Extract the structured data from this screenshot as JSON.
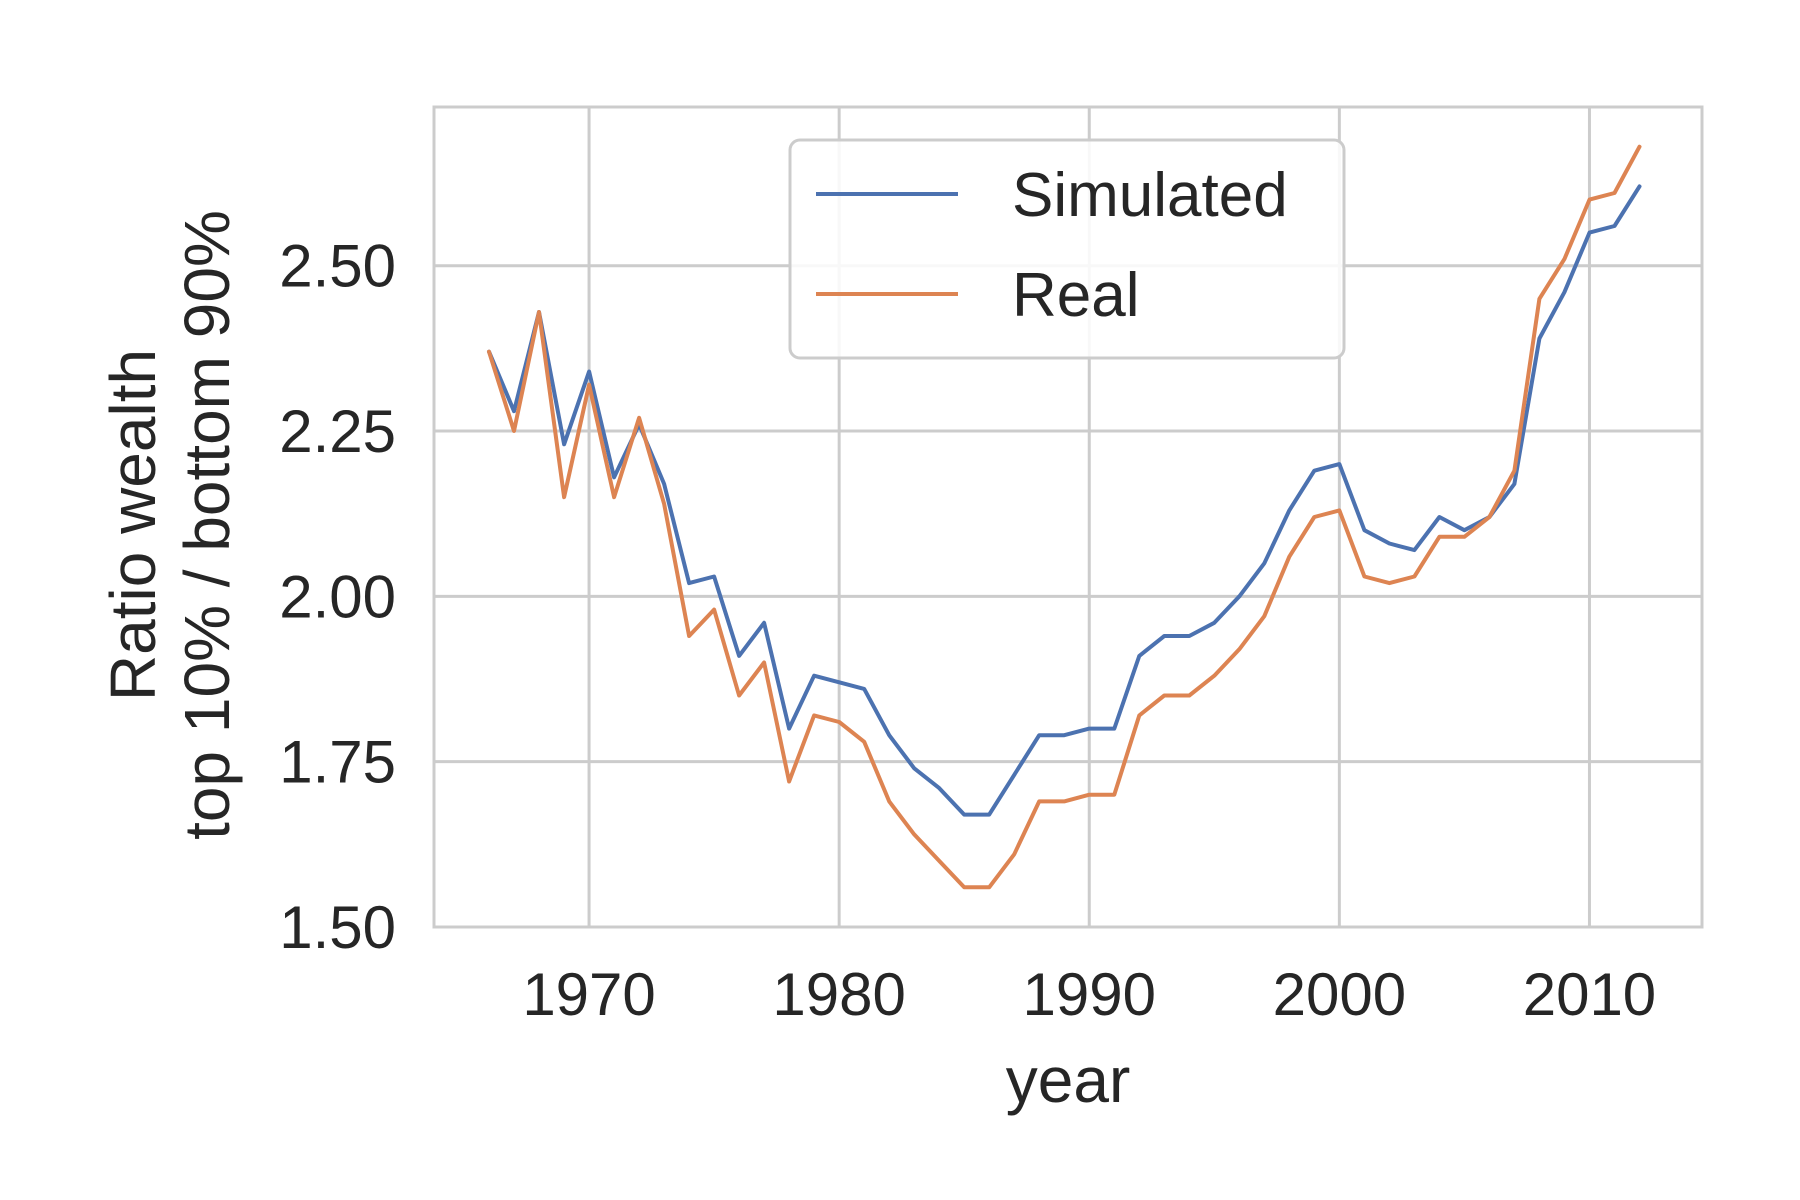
{
  "chart_data": {
    "type": "line",
    "title": "",
    "xlabel": "year",
    "ylabel_lines": [
      "Ratio wealth",
      "top 10% / bottom 90%"
    ],
    "xlim": [
      1963.8,
      2014.5
    ],
    "ylim": [
      1.5,
      2.74
    ],
    "xticks": [
      1970,
      1980,
      1990,
      2000,
      2010
    ],
    "xtick_labels": [
      "1970",
      "1980",
      "1990",
      "2000",
      "2010"
    ],
    "yticks": [
      1.5,
      1.75,
      2.0,
      2.25,
      2.5
    ],
    "ytick_labels": [
      "1.50",
      "1.75",
      "2.00",
      "2.25",
      "2.50"
    ],
    "grid": true,
    "legend_position": "upper-center",
    "x": [
      1966,
      1967,
      1968,
      1969,
      1970,
      1971,
      1972,
      1973,
      1974,
      1975,
      1976,
      1977,
      1978,
      1979,
      1980,
      1981,
      1982,
      1983,
      1984,
      1985,
      1986,
      1987,
      1988,
      1989,
      1990,
      1991,
      1992,
      1993,
      1994,
      1995,
      1996,
      1997,
      1998,
      1999,
      2000,
      2001,
      2002,
      2003,
      2004,
      2005,
      2006,
      2007,
      2008,
      2009,
      2010,
      2011,
      2012
    ],
    "series": [
      {
        "name": "Simulated",
        "color": "#4c72b0",
        "values": [
          2.37,
          2.28,
          2.43,
          2.23,
          2.34,
          2.18,
          2.26,
          2.17,
          2.02,
          2.03,
          1.91,
          1.96,
          1.8,
          1.88,
          1.87,
          1.86,
          1.79,
          1.74,
          1.71,
          1.67,
          1.67,
          1.73,
          1.79,
          1.79,
          1.8,
          1.8,
          1.91,
          1.94,
          1.94,
          1.96,
          2.0,
          2.05,
          2.13,
          2.19,
          2.2,
          2.1,
          2.08,
          2.07,
          2.12,
          2.1,
          2.12,
          2.17,
          2.39,
          2.46,
          2.55,
          2.56,
          2.62
        ]
      },
      {
        "name": "Real",
        "color": "#dd8452",
        "values": [
          2.37,
          2.25,
          2.43,
          2.15,
          2.32,
          2.15,
          2.27,
          2.14,
          1.94,
          1.98,
          1.85,
          1.9,
          1.72,
          1.82,
          1.81,
          1.78,
          1.69,
          1.64,
          1.6,
          1.56,
          1.56,
          1.61,
          1.69,
          1.69,
          1.7,
          1.7,
          1.82,
          1.85,
          1.85,
          1.88,
          1.92,
          1.97,
          2.06,
          2.12,
          2.13,
          2.03,
          2.02,
          2.03,
          2.09,
          2.09,
          2.12,
          2.19,
          2.45,
          2.51,
          2.6,
          2.61,
          2.68
        ]
      }
    ]
  }
}
